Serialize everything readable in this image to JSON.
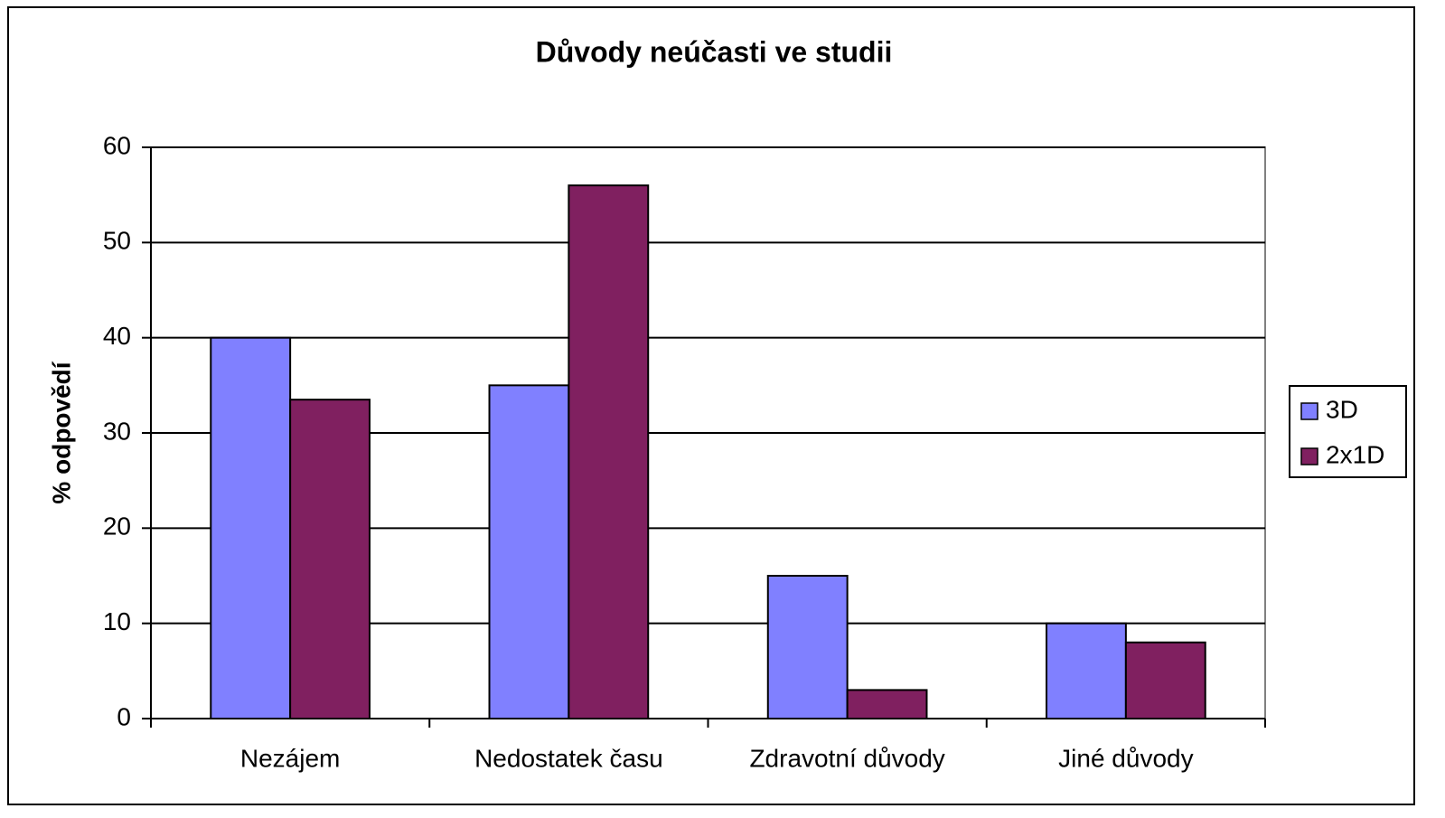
{
  "chart_data": {
    "type": "bar",
    "title": "Důvody neúčasti ve studii",
    "y_label": "% odpovědí",
    "categories": [
      "Nezájem",
      "Nedostatek času",
      "Zdravotní důvody",
      "Jiné důvody"
    ],
    "series": [
      {
        "name": "3D",
        "color": "#8080ff",
        "values": [
          40,
          35,
          15,
          10
        ]
      },
      {
        "name": "2x1D",
        "color": "#802060",
        "values": [
          33.5,
          56,
          3,
          8
        ]
      }
    ],
    "ylim": [
      0,
      60
    ],
    "yticks": [
      0,
      10,
      20,
      30,
      40,
      50,
      60
    ],
    "grid": true,
    "legend": "right"
  }
}
